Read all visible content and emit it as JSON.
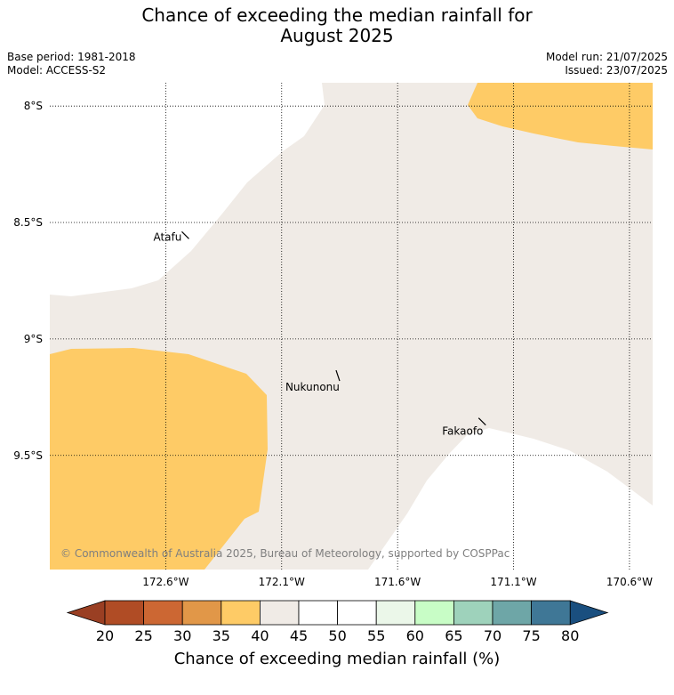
{
  "title_line1": "Chance of exceeding the median rainfall for",
  "title_line2": "August 2025",
  "base_period": "Base period: 1981-2018",
  "model": "Model: ACCESS-S2",
  "model_run": "Model run: 21/07/2025",
  "issued": "Issued: 23/07/2025",
  "copyright": "© Commonwealth of Australia 2025, Bureau of Meteorology, supported by COSPPac",
  "map": {
    "lon_range": [
      173.1,
      170.5
    ],
    "lat_range": [
      -7.9,
      -9.99
    ],
    "lon_ticks": [
      {
        "value": 172.6,
        "label": "172.6°W"
      },
      {
        "value": 172.1,
        "label": "172.1°W"
      },
      {
        "value": 171.6,
        "label": "171.6°W"
      },
      {
        "value": 171.1,
        "label": "171.1°W"
      },
      {
        "value": 170.6,
        "label": "170.6°W"
      }
    ],
    "lat_ticks": [
      {
        "value": -8.0,
        "label": "8°S"
      },
      {
        "value": -8.5,
        "label": "8.5°S"
      },
      {
        "value": -9.0,
        "label": "9°S"
      },
      {
        "value": -9.5,
        "label": "9.5°S"
      }
    ],
    "grid": "dotted",
    "islands": [
      {
        "name": "Atafu",
        "lon": 172.5,
        "lat": -8.57
      },
      {
        "name": "Nukunonu",
        "lon": 171.85,
        "lat": -9.18
      },
      {
        "name": "Fakaofo",
        "lon": 171.22,
        "lat": -9.37
      }
    ],
    "regions": [
      {
        "category": "45-50",
        "color": "#ffffff",
        "location": "north-west"
      },
      {
        "category": "40-45",
        "color": "#f0ebe6",
        "location": "centre"
      },
      {
        "category": "35-40",
        "color": "#fecb66",
        "location": "north-east"
      },
      {
        "category": "35-40",
        "color": "#fecb66",
        "location": "south-west"
      },
      {
        "category": "45-50",
        "color": "#ffffff",
        "location": "south-east"
      }
    ]
  },
  "colorbar": {
    "label": "Chance of exceeding median rainfall (%)",
    "ticks": [
      "20",
      "25",
      "30",
      "35",
      "40",
      "45",
      "50",
      "55",
      "60",
      "65",
      "70",
      "75",
      "80"
    ],
    "colors": [
      "#b04c25",
      "#cc6733",
      "#e19748",
      "#fecb66",
      "#f0ebe6",
      "#ffffff",
      "#ffffff",
      "#ebf7e9",
      "#c8fdc6",
      "#9ed2bb",
      "#6ea6a7",
      "#3f7796"
    ],
    "under_color": "#9a3f23",
    "over_color": "#1a4f7f"
  }
}
